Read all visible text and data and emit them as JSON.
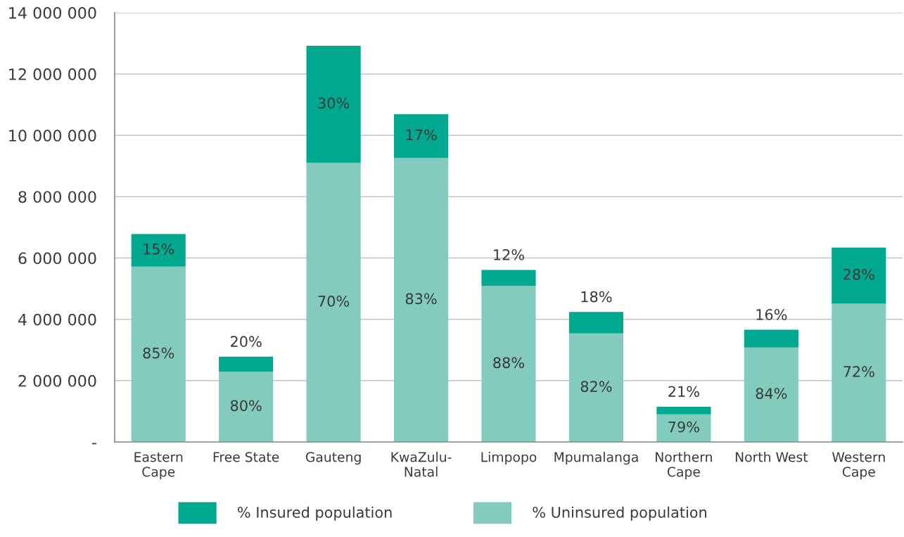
{
  "chart_data": {
    "type": "bar",
    "stacked": true,
    "categories": [
      "Eastern\nCape",
      "Free State",
      "Gauteng",
      "KwaZulu-\nNatal",
      "Limpopo",
      "Mpumalanga",
      "Northern\nCape",
      "North West",
      "Western\nCape"
    ],
    "series": [
      {
        "name": "% Uninsured population",
        "color": "#82cbbd",
        "values": [
          5720000,
          2290000,
          9100000,
          9260000,
          5090000,
          3540000,
          900000,
          3080000,
          4510000
        ]
      },
      {
        "name": "% Insured population",
        "color": "#00a88f",
        "values": [
          1060000,
          490000,
          3820000,
          1430000,
          520000,
          700000,
          250000,
          580000,
          1830000
        ]
      }
    ],
    "annotations": [
      "85%",
      "15%",
      "80%",
      "20%",
      "70%",
      "30%",
      "83%",
      "17%",
      "88%",
      "12%",
      "82%",
      "18%",
      "79%",
      "21%",
      "84%",
      "16%",
      "72%",
      "28%"
    ],
    "ylim": [
      0,
      14000000
    ],
    "yticks": [
      {
        "value": 0,
        "label": "-"
      },
      {
        "value": 2000000,
        "label": "2 000 000"
      },
      {
        "value": 4000000,
        "label": "4 000 000"
      },
      {
        "value": 6000000,
        "label": "6 000 000"
      },
      {
        "value": 8000000,
        "label": "8 000 000"
      },
      {
        "value": 10000000,
        "label": "10 000 000"
      },
      {
        "value": 12000000,
        "label": "12 000 000"
      },
      {
        "value": 14000000,
        "label": "14 000 000"
      }
    ],
    "grid": "y",
    "legend": "bottom"
  }
}
